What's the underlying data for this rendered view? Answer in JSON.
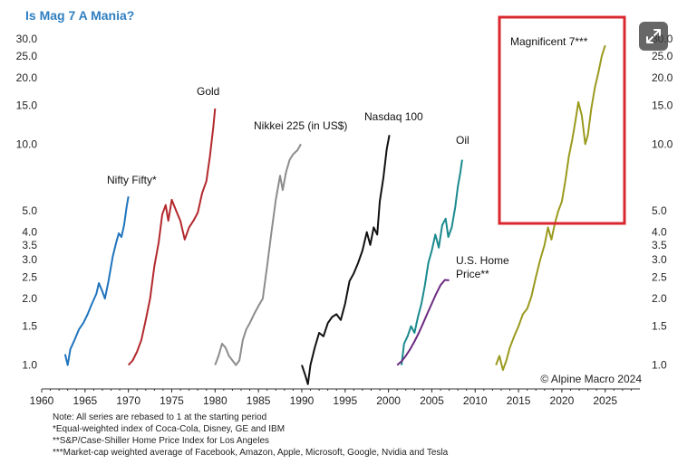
{
  "title": "Is Mag 7 A Mania?",
  "expand_icon": "expand-icon",
  "chart_data": {
    "type": "line",
    "yscale": "log",
    "ylim": [
      0.78,
      32
    ],
    "xlim": [
      1960,
      2029
    ],
    "x_ticks": [
      "1960",
      "1965",
      "1970",
      "1975",
      "1980",
      "1985",
      "1990",
      "1995",
      "2000",
      "2005",
      "2010",
      "2015",
      "2020",
      "2025"
    ],
    "y_ticks": [
      "30.0",
      "25.0",
      "20.0",
      "15.0",
      "10.0",
      "5.0",
      "4.0",
      "3.5",
      "3.0",
      "2.5",
      "2.0",
      "1.5",
      "1.0"
    ],
    "source": "© Alpine Macro 2024",
    "highlight_box_color": "#d9272e",
    "series": [
      {
        "name": "Nifty Fifty*",
        "color": "#1f74bd",
        "points": [
          [
            1962.7,
            1.12
          ],
          [
            1963.0,
            1.0
          ],
          [
            1963.3,
            1.18
          ],
          [
            1963.8,
            1.3
          ],
          [
            1964.3,
            1.45
          ],
          [
            1964.8,
            1.55
          ],
          [
            1965.3,
            1.7
          ],
          [
            1965.8,
            1.9
          ],
          [
            1966.3,
            2.1
          ],
          [
            1966.6,
            2.35
          ],
          [
            1967.0,
            2.15
          ],
          [
            1967.3,
            2.0
          ],
          [
            1967.7,
            2.4
          ],
          [
            1968.2,
            3.1
          ],
          [
            1968.6,
            3.6
          ],
          [
            1968.9,
            3.95
          ],
          [
            1969.2,
            3.8
          ],
          [
            1969.5,
            4.3
          ],
          [
            1969.8,
            5.2
          ],
          [
            1970.0,
            5.8
          ]
        ]
      },
      {
        "name": "Gold",
        "color": "#b3282d",
        "points": [
          [
            1970.0,
            1.0
          ],
          [
            1970.5,
            1.05
          ],
          [
            1971.0,
            1.15
          ],
          [
            1971.5,
            1.3
          ],
          [
            1972.0,
            1.6
          ],
          [
            1972.5,
            2.0
          ],
          [
            1973.0,
            2.8
          ],
          [
            1973.5,
            3.6
          ],
          [
            1973.9,
            4.8
          ],
          [
            1974.3,
            5.3
          ],
          [
            1974.6,
            4.5
          ],
          [
            1975.0,
            5.6
          ],
          [
            1975.5,
            5.0
          ],
          [
            1976.0,
            4.5
          ],
          [
            1976.5,
            3.7
          ],
          [
            1977.0,
            4.2
          ],
          [
            1977.5,
            4.5
          ],
          [
            1978.0,
            4.9
          ],
          [
            1978.5,
            6.0
          ],
          [
            1979.0,
            6.8
          ],
          [
            1979.4,
            8.8
          ],
          [
            1979.8,
            12.0
          ],
          [
            1980.0,
            14.5
          ]
        ]
      },
      {
        "name": "Nikkei 225 (in US$)",
        "color": "#8c8c8c",
        "points": [
          [
            1980.0,
            1.0
          ],
          [
            1980.4,
            1.1
          ],
          [
            1980.8,
            1.25
          ],
          [
            1981.2,
            1.2
          ],
          [
            1981.6,
            1.1
          ],
          [
            1982.0,
            1.05
          ],
          [
            1982.4,
            1.0
          ],
          [
            1982.8,
            1.05
          ],
          [
            1983.2,
            1.3
          ],
          [
            1983.6,
            1.45
          ],
          [
            1984.0,
            1.55
          ],
          [
            1984.5,
            1.7
          ],
          [
            1985.0,
            1.85
          ],
          [
            1985.5,
            2.0
          ],
          [
            1986.0,
            2.8
          ],
          [
            1986.5,
            4.0
          ],
          [
            1987.0,
            5.6
          ],
          [
            1987.5,
            7.2
          ],
          [
            1987.8,
            6.2
          ],
          [
            1988.2,
            7.5
          ],
          [
            1988.6,
            8.5
          ],
          [
            1989.0,
            9.0
          ],
          [
            1989.5,
            9.4
          ],
          [
            1989.9,
            10.0
          ]
        ]
      },
      {
        "name": "Nasdaq 100",
        "color": "#111111",
        "points": [
          [
            1990.0,
            1.0
          ],
          [
            1990.4,
            0.9
          ],
          [
            1990.7,
            0.82
          ],
          [
            1991.0,
            1.0
          ],
          [
            1991.5,
            1.2
          ],
          [
            1992.0,
            1.4
          ],
          [
            1992.5,
            1.35
          ],
          [
            1993.0,
            1.55
          ],
          [
            1993.5,
            1.65
          ],
          [
            1994.0,
            1.7
          ],
          [
            1994.5,
            1.6
          ],
          [
            1995.0,
            1.9
          ],
          [
            1995.5,
            2.4
          ],
          [
            1996.0,
            2.6
          ],
          [
            1996.5,
            2.9
          ],
          [
            1997.0,
            3.3
          ],
          [
            1997.5,
            4.0
          ],
          [
            1997.9,
            3.5
          ],
          [
            1998.3,
            4.2
          ],
          [
            1998.7,
            3.9
          ],
          [
            1999.0,
            5.5
          ],
          [
            1999.4,
            7.0
          ],
          [
            1999.8,
            9.5
          ],
          [
            2000.1,
            11.0
          ]
        ]
      },
      {
        "name": "Oil",
        "color": "#1a8a8e",
        "points": [
          [
            2001.5,
            1.0
          ],
          [
            2001.8,
            1.25
          ],
          [
            2002.2,
            1.35
          ],
          [
            2002.6,
            1.5
          ],
          [
            2003.0,
            1.4
          ],
          [
            2003.4,
            1.65
          ],
          [
            2003.8,
            1.9
          ],
          [
            2004.2,
            2.3
          ],
          [
            2004.6,
            2.9
          ],
          [
            2005.0,
            3.3
          ],
          [
            2005.4,
            3.9
          ],
          [
            2005.8,
            3.4
          ],
          [
            2006.2,
            4.3
          ],
          [
            2006.6,
            4.6
          ],
          [
            2006.9,
            3.8
          ],
          [
            2007.3,
            4.2
          ],
          [
            2007.7,
            5.2
          ],
          [
            2008.0,
            6.4
          ],
          [
            2008.3,
            7.5
          ],
          [
            2008.5,
            8.5
          ]
        ]
      },
      {
        "name": "U.S. Home Price**",
        "color": "#6b2a80",
        "points": [
          [
            2001.0,
            1.0
          ],
          [
            2001.5,
            1.04
          ],
          [
            2002.0,
            1.1
          ],
          [
            2002.5,
            1.18
          ],
          [
            2003.0,
            1.28
          ],
          [
            2003.5,
            1.4
          ],
          [
            2004.0,
            1.55
          ],
          [
            2004.5,
            1.72
          ],
          [
            2005.0,
            1.9
          ],
          [
            2005.5,
            2.1
          ],
          [
            2006.0,
            2.3
          ],
          [
            2006.5,
            2.43
          ],
          [
            2007.0,
            2.42
          ]
        ]
      },
      {
        "name": "Magnificent 7***",
        "color": "#9a9a1e",
        "points": [
          [
            2012.4,
            1.0
          ],
          [
            2012.8,
            1.1
          ],
          [
            2013.2,
            0.95
          ],
          [
            2013.6,
            1.05
          ],
          [
            2014.0,
            1.2
          ],
          [
            2014.5,
            1.35
          ],
          [
            2015.0,
            1.5
          ],
          [
            2015.5,
            1.7
          ],
          [
            2016.0,
            1.8
          ],
          [
            2016.5,
            2.05
          ],
          [
            2017.0,
            2.5
          ],
          [
            2017.5,
            3.0
          ],
          [
            2018.0,
            3.5
          ],
          [
            2018.4,
            4.2
          ],
          [
            2018.8,
            3.7
          ],
          [
            2019.2,
            4.4
          ],
          [
            2019.6,
            5.0
          ],
          [
            2020.0,
            5.5
          ],
          [
            2020.4,
            6.8
          ],
          [
            2020.8,
            8.8
          ],
          [
            2021.2,
            10.5
          ],
          [
            2021.6,
            13.0
          ],
          [
            2021.9,
            15.5
          ],
          [
            2022.3,
            13.5
          ],
          [
            2022.7,
            10.0
          ],
          [
            2023.0,
            11.0
          ],
          [
            2023.4,
            14.5
          ],
          [
            2023.8,
            18.0
          ],
          [
            2024.2,
            21.0
          ],
          [
            2024.6,
            25.0
          ],
          [
            2025.0,
            28.0
          ]
        ]
      }
    ],
    "notes": [
      "Note: All series are rebased to 1 at the starting period",
      "*Equal-weighted index of Coca-Cola, Disney, GE and IBM",
      "**S&P/Case-Shiller Home Price Index for Los Angeles",
      "***Market-cap weighted average of Facebook, Amazon, Apple, Microsoft, Google, Nvidia and Tesla"
    ]
  }
}
